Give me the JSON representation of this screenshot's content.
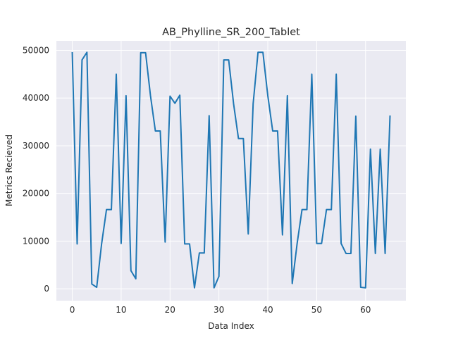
{
  "chart_data": {
    "type": "line",
    "title": "AB_Phylline_SR_200_Tablet",
    "xlabel": "Data Index",
    "ylabel": "Metrics Recieved",
    "xlim": [
      -3.25,
      68.25
    ],
    "ylim": [
      -2500,
      52000
    ],
    "xticks": [
      0,
      10,
      20,
      30,
      40,
      50,
      60
    ],
    "yticks": [
      0,
      10000,
      20000,
      30000,
      40000,
      50000
    ],
    "grid": true,
    "line_color": "#1f77b4",
    "background_color": "#eaeaf2",
    "series": [
      {
        "x": [
          0,
          1,
          2,
          3,
          4,
          5,
          6,
          7,
          8,
          9,
          10,
          11,
          12,
          13,
          14,
          15,
          16,
          17,
          18,
          19,
          20,
          21,
          22,
          23,
          24,
          25,
          26,
          27,
          28,
          29,
          30,
          31,
          32,
          33,
          34,
          35,
          36,
          37,
          38,
          39,
          40,
          41,
          42,
          43,
          44,
          45,
          46,
          47,
          48,
          49,
          50,
          51,
          52,
          53,
          54,
          55,
          56,
          57,
          58,
          59,
          60,
          61,
          62,
          63,
          64,
          65
        ],
        "values": [
          49500,
          9400,
          48000,
          49600,
          1000,
          300,
          9400,
          16600,
          16600,
          45000,
          9500,
          40500,
          3800,
          2100,
          49500,
          49500,
          40500,
          33100,
          33100,
          9800,
          40400,
          38900,
          40600,
          9400,
          9400,
          200,
          7500,
          7500,
          36300,
          200,
          2600,
          48000,
          48000,
          38800,
          31500,
          31500,
          11500,
          38800,
          49600,
          49600,
          40500,
          33100,
          33100,
          11300,
          40500,
          1100,
          9500,
          16600,
          16600,
          45000,
          9500,
          9500,
          16600,
          16600,
          45000,
          9500,
          7400,
          7400,
          36200,
          300,
          200,
          29300,
          7400,
          29300,
          7400,
          36200
        ]
      }
    ]
  }
}
